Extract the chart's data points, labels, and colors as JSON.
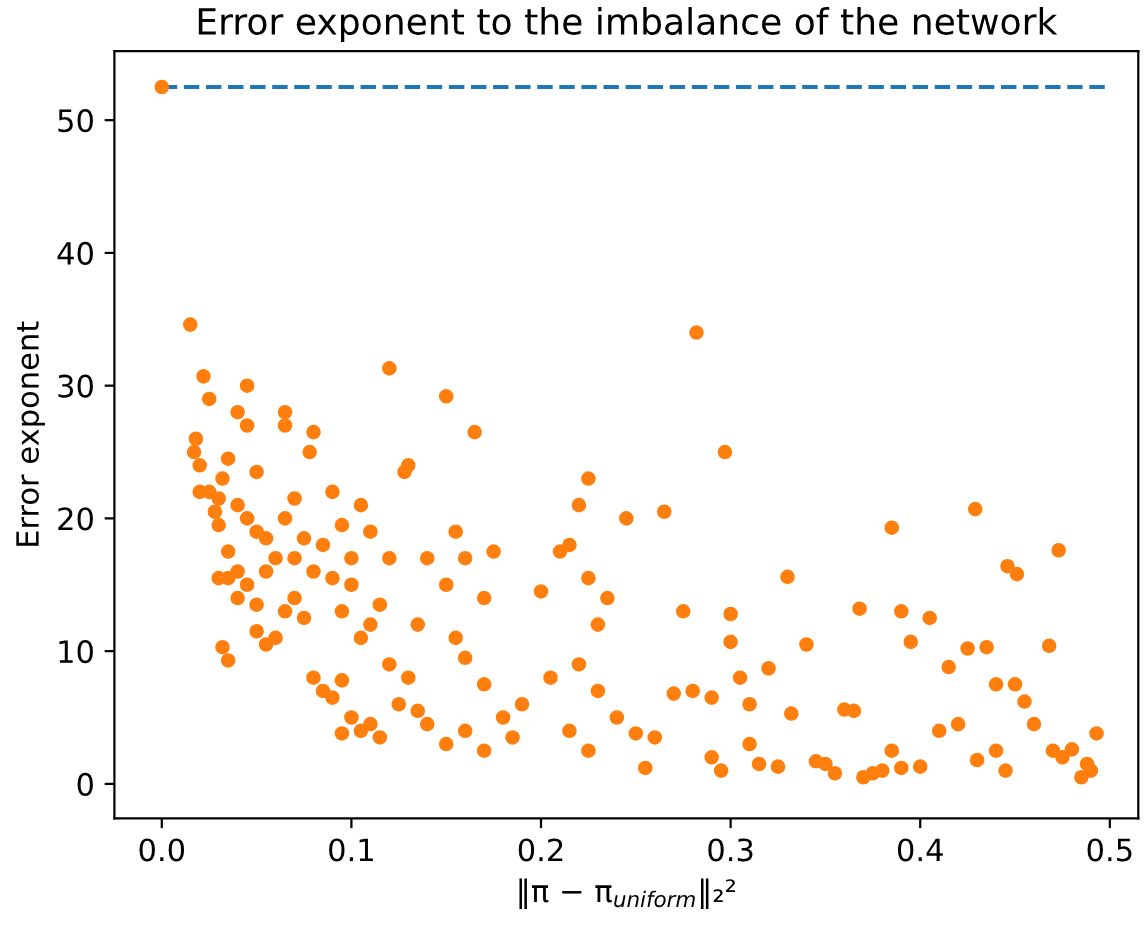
{
  "chart_data": {
    "type": "scatter",
    "title": "Error exponent to the imbalance of the network",
    "xlabel": "‖π − π$_{uniform}$‖₂²",
    "ylabel": "Error exponent",
    "xlim": [
      -0.025,
      0.515
    ],
    "ylim": [
      -2.6,
      55.2
    ],
    "xticks": [
      {
        "value": 0,
        "label": "0.0"
      },
      0.1,
      0.2,
      0.3,
      0.4,
      0.5
    ],
    "yticks": [
      0,
      10,
      20,
      30,
      40,
      50
    ],
    "grid": false,
    "legend": false,
    "series": [
      {
        "type": "line",
        "color": "#1f77b4",
        "line_style": "dashed",
        "marker": "none",
        "x": [
          0,
          0.5
        ],
        "values": [
          52.5,
          52.5
        ]
      },
      {
        "color": "#ff7f0e",
        "marker": "circle",
        "x": [
          0,
          0.015,
          0.022,
          0.025,
          0.018,
          0.017,
          0.02,
          0.02,
          0.025,
          0.03,
          0.028,
          0.03,
          0.032,
          0.035,
          0.04,
          0.045,
          0.045,
          0.05,
          0.04,
          0.045,
          0.05,
          0.035,
          0.04,
          0.045,
          0.035,
          0.04,
          0.05,
          0.055,
          0.06,
          0.055,
          0.065,
          0.07,
          0.075,
          0.07,
          0.08,
          0.085,
          0.03,
          0.032,
          0.035,
          0.05,
          0.055,
          0.06,
          0.065,
          0.07,
          0.075,
          0.065,
          0.08,
          0.078,
          0.065,
          0.09,
          0.1,
          0.095,
          0.105,
          0.11,
          0.1,
          0.09,
          0.095,
          0.11,
          0.115,
          0.105,
          0.08,
          0.085,
          0.09,
          0.095,
          0.1,
          0.105,
          0.095,
          0.11,
          0.115,
          0.12,
          0.13,
          0.128,
          0.12,
          0.12,
          0.13,
          0.125,
          0.135,
          0.14,
          0.135,
          0.14,
          0.15,
          0.165,
          0.155,
          0.15,
          0.16,
          0.17,
          0.175,
          0.16,
          0.17,
          0.155,
          0.16,
          0.15,
          0.17,
          0.18,
          0.185,
          0.19,
          0.2,
          0.205,
          0.21,
          0.215,
          0.225,
          0.22,
          0.225,
          0.23,
          0.235,
          0.22,
          0.215,
          0.225,
          0.23,
          0.24,
          0.245,
          0.25,
          0.255,
          0.26,
          0.265,
          0.27,
          0.275,
          0.28,
          0.282,
          0.29,
          0.29,
          0.295,
          0.297,
          0.3,
          0.3,
          0.305,
          0.31,
          0.31,
          0.315,
          0.32,
          0.325,
          0.33,
          0.332,
          0.34,
          0.345,
          0.35,
          0.355,
          0.36,
          0.365,
          0.368,
          0.37,
          0.375,
          0.38,
          0.385,
          0.385,
          0.39,
          0.39,
          0.395,
          0.4,
          0.405,
          0.41,
          0.415,
          0.42,
          0.425,
          0.43,
          0.429,
          0.435,
          0.44,
          0.44,
          0.445,
          0.473,
          0.446,
          0.451,
          0.468,
          0.45,
          0.455,
          0.46,
          0.47,
          0.475,
          0.48,
          0.485,
          0.488,
          0.493,
          0.49
        ],
        "values": [
          52.5,
          34.6,
          30.7,
          29,
          26,
          25,
          24,
          22,
          22,
          21.5,
          20.5,
          19.5,
          23,
          24.5,
          28,
          30,
          27,
          23.5,
          21,
          20,
          19,
          17.5,
          16,
          15,
          15.5,
          14,
          13.5,
          16,
          17,
          18.5,
          20,
          21.5,
          18.5,
          17,
          16,
          18,
          15.5,
          10.3,
          9.3,
          11.5,
          10.5,
          11,
          13,
          14,
          12.5,
          28,
          26.5,
          25,
          27,
          22,
          17,
          19.5,
          21,
          19,
          15,
          15.5,
          13,
          12,
          13.5,
          11,
          8,
          7,
          6.5,
          7.8,
          5,
          4,
          3.8,
          4.5,
          3.5,
          31.3,
          24,
          23.5,
          17,
          9,
          8,
          6,
          5.5,
          4.5,
          12,
          17,
          29.2,
          26.5,
          19,
          15,
          17,
          14,
          17.5,
          9.5,
          7.5,
          11,
          4,
          3,
          2.5,
          5,
          3.5,
          6,
          14.5,
          8,
          17.5,
          18,
          23,
          21,
          15.5,
          12,
          14,
          9,
          4,
          2.5,
          7,
          5,
          20,
          3.8,
          1.2,
          3.5,
          20.5,
          6.8,
          13,
          7,
          34,
          6.5,
          2,
          1,
          25,
          12.8,
          10.7,
          8,
          3,
          6,
          1.5,
          8.7,
          1.3,
          15.6,
          5.3,
          10.5,
          1.7,
          1.5,
          0.8,
          5.6,
          5.5,
          13.2,
          0.5,
          0.8,
          1,
          19.3,
          2.5,
          13,
          1.2,
          10.7,
          1.3,
          12.5,
          4,
          8.8,
          4.5,
          10.2,
          1.8,
          20.7,
          10.3,
          2.5,
          7.5,
          1,
          17.6,
          16.4,
          15.8,
          10.4,
          7.5,
          6.2,
          4.5,
          2.5,
          2,
          2.6,
          0.5,
          1.5,
          3.8,
          1
        ]
      }
    ]
  }
}
